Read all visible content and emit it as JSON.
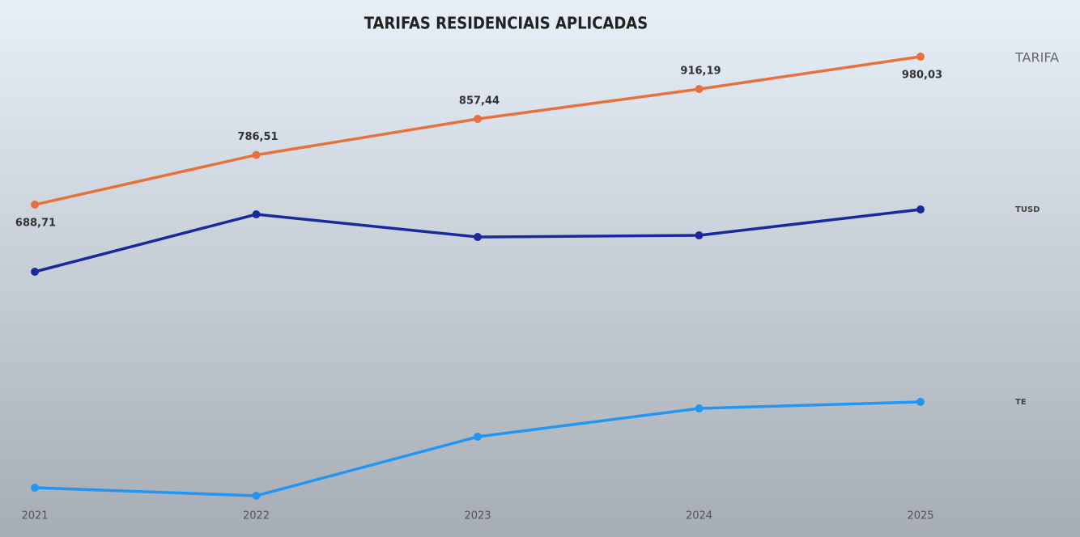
{
  "chart_data": {
    "type": "line",
    "title": "TARIFAS RESIDENCIAIS APLICADAS",
    "categories": [
      "2021",
      "2022",
      "2023",
      "2024",
      "2025"
    ],
    "ylim": [
      100,
      1000
    ],
    "series": [
      {
        "name": "TARIFA",
        "color": "#e8703a",
        "values": [
          688.71,
          786.51,
          857.44,
          916.19,
          980.03
        ],
        "value_labels": [
          "688,71",
          "786,51",
          "857,44",
          "916,19",
          "980,03"
        ]
      },
      {
        "name": "TUSD",
        "color": "#1a2a9c",
        "values": [
          556.6,
          669.6,
          625.0,
          628.2,
          679.2
        ]
      },
      {
        "name": "TE",
        "color": "#2196f3",
        "values": [
          131.5,
          115.6,
          231.8,
          287.5,
          300.3
        ]
      }
    ]
  }
}
